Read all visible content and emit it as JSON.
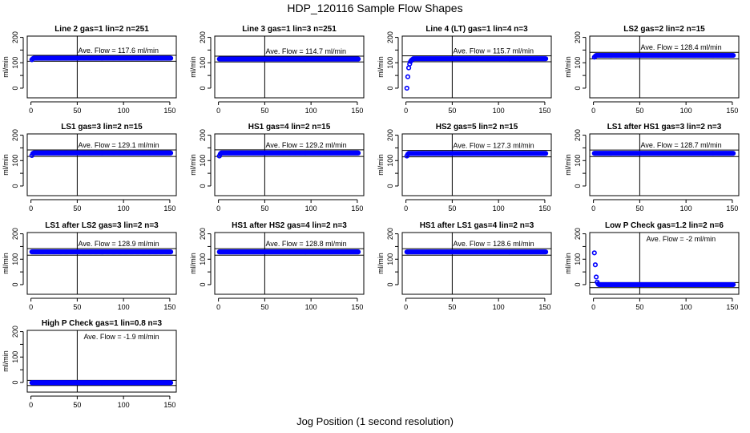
{
  "title": "HDP_120116  Sample Flow Shapes",
  "xlabel": "Jog Position (1 second resolution)",
  "ylabel": "ml/min",
  "colors": {
    "points": "#0000ff",
    "axes": "#000000"
  },
  "chart_data": {
    "type": "scatter",
    "xlim": [
      -4,
      157
    ],
    "ylim": [
      -38,
      205
    ],
    "xticks": [
      0,
      50,
      100,
      150
    ],
    "yticks": [
      0,
      50,
      100,
      150,
      200
    ],
    "ytick_labels": [
      0,
      100,
      200
    ],
    "vline_x": 50,
    "avg_prefix": "Ave. Flow =  ",
    "avg_suffix": "  ml/min",
    "panels": [
      {
        "title": "Line 2 gas=1 lin=2 n=251",
        "avg": 117.6,
        "start": [
          112,
          116
        ],
        "steady": 118,
        "points": 151
      },
      {
        "title": "Line 3 gas=1 lin=3 n=251",
        "avg": 114.7,
        "start": [],
        "steady": 114.7,
        "points": 151
      },
      {
        "title": "Line 4 (LT) gas=1 lin=4 n=3",
        "avg": 115.7,
        "start": [
          0,
          45,
          80,
          95,
          105,
          110,
          113
        ],
        "steady": 116,
        "points": 151
      },
      {
        "title": "LS2 gas=2 lin=2 n=15",
        "avg": 128.4,
        "start": [
          122,
          126
        ],
        "steady": 129,
        "points": 151
      },
      {
        "title": "LS1 gas=3 lin=2 n=15",
        "avg": 129.1,
        "start": [
          120,
          128
        ],
        "steady": 130,
        "points": 151
      },
      {
        "title": "HS1 gas=4 lin=2 n=15",
        "avg": 129.2,
        "start": [
          118,
          126
        ],
        "steady": 130,
        "points": 151
      },
      {
        "title": "HS2 gas=5 lin=2 n=15",
        "avg": 127.3,
        "start": [
          118,
          125
        ],
        "steady": 128,
        "points": 151
      },
      {
        "title": "LS1 after HS1 gas=3 lin=2 n=3",
        "avg": 128.7,
        "start": [],
        "steady": 128.7,
        "points": 151
      },
      {
        "title": "LS1 after LS2 gas=3 lin=2 n=3",
        "avg": 128.9,
        "start": [],
        "steady": 128.9,
        "points": 151
      },
      {
        "title": "HS1 after HS2 gas=4 lin=2 n=3",
        "avg": 128.8,
        "start": [],
        "steady": 128.8,
        "points": 151
      },
      {
        "title": "HS1 after LS1 gas=4 lin=2 n=3",
        "avg": 128.6,
        "start": [],
        "steady": 128.6,
        "points": 151
      },
      {
        "title": "Low P Check gas=1.2 lin=2 n=6",
        "avg": -2,
        "start": [
          125,
          78,
          30,
          10,
          3
        ],
        "steady": 0,
        "points": 151
      },
      {
        "title": "High P Check gas=1 lin=0.8 n=3",
        "avg": -1.9,
        "start": [],
        "steady": -1,
        "points": 151
      }
    ]
  }
}
